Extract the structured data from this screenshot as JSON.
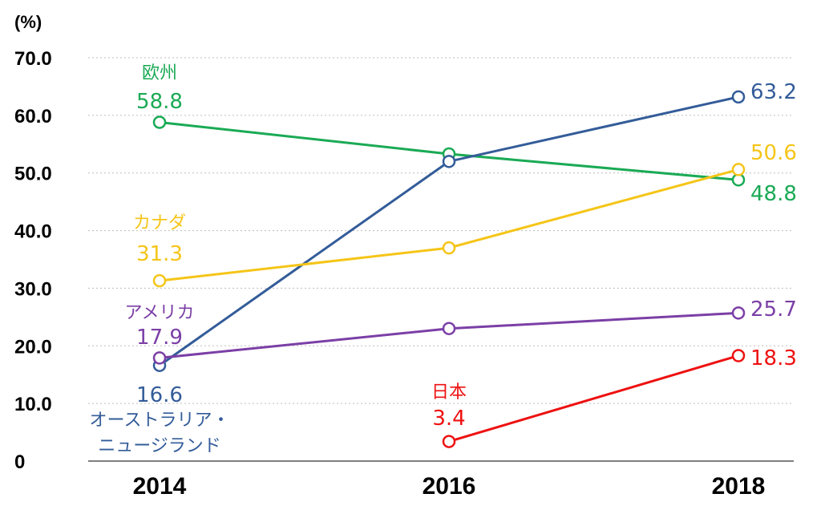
{
  "chart_data": {
    "type": "line",
    "y_unit_label": "(%)",
    "x": [
      "2014",
      "2016",
      "2018"
    ],
    "ylim": [
      0,
      70
    ],
    "y_ticks": [
      "0",
      "10.0",
      "20.0",
      "30.0",
      "40.0",
      "50.0",
      "60.0",
      "70.0"
    ],
    "grid": true,
    "series": [
      {
        "key": "europe",
        "name": "欧州",
        "color": "#1aaa55",
        "values": [
          58.8,
          53.3,
          48.8
        ],
        "labels": [
          "58.8",
          "",
          "48.8"
        ]
      },
      {
        "key": "australia_nz",
        "name_lines": [
          "オーストラリア・",
          "ニュージランド"
        ],
        "color": "#335c99",
        "values": [
          16.6,
          52.0,
          63.2
        ],
        "labels": [
          "16.6",
          "",
          "63.2"
        ]
      },
      {
        "key": "canada",
        "name": "カナダ",
        "color": "#f5c518",
        "values": [
          31.3,
          37.0,
          50.6
        ],
        "labels": [
          "31.3",
          "",
          "50.6"
        ]
      },
      {
        "key": "usa",
        "name": "アメリカ",
        "color": "#7b3fa6",
        "values": [
          17.9,
          23.0,
          25.7
        ],
        "labels": [
          "17.9",
          "",
          "25.7"
        ]
      },
      {
        "key": "japan",
        "name": "日本",
        "color": "#ee1111",
        "values": [
          null,
          3.4,
          18.3
        ],
        "labels": [
          "",
          "3.4",
          "18.3"
        ]
      }
    ]
  }
}
